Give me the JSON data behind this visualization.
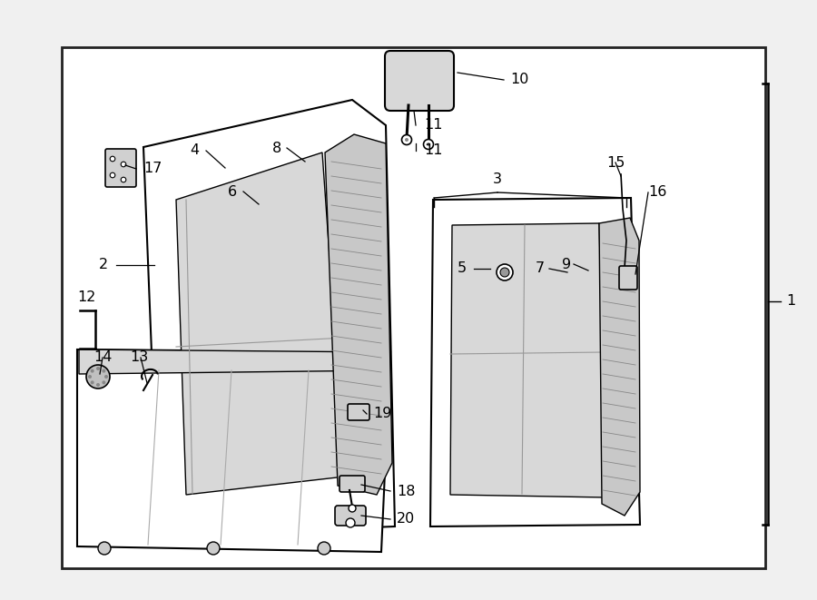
{
  "bg_color": "#f0f0f0",
  "inner_bg": "#ffffff",
  "line_color": "#000000",
  "figsize": [
    9.0,
    6.61
  ],
  "dpi": 100
}
